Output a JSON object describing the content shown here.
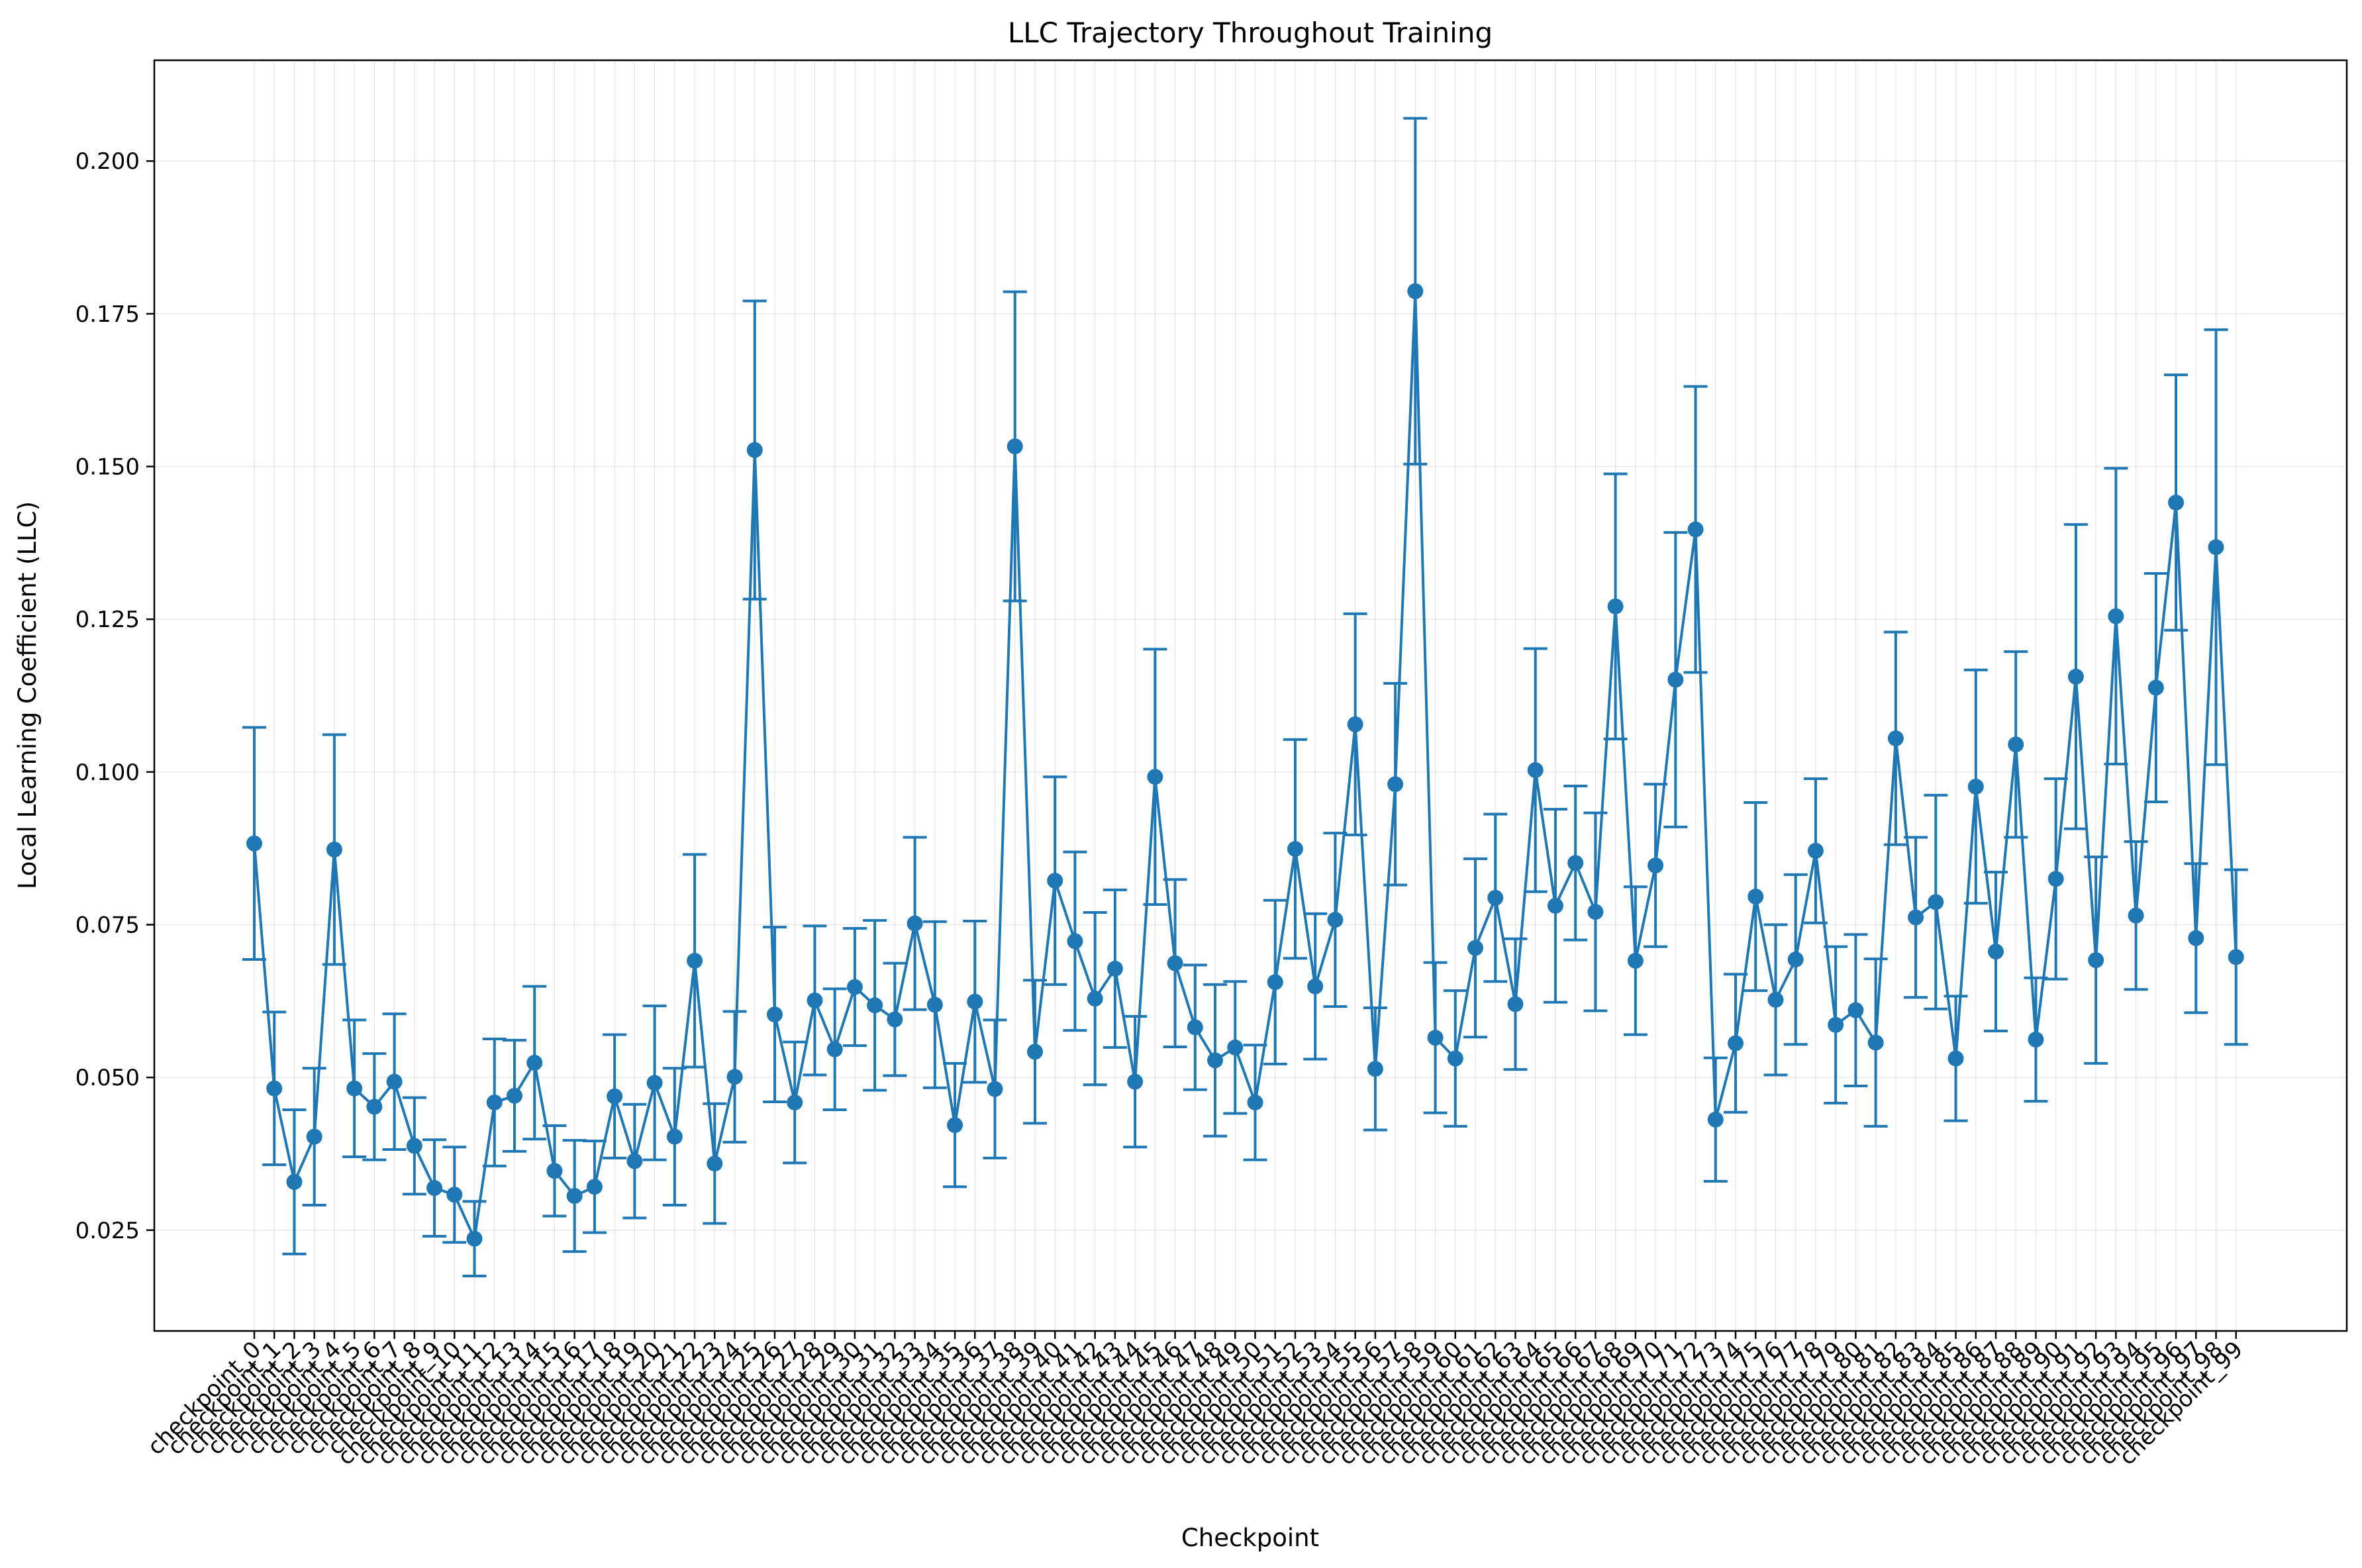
{
  "chart_data": {
    "type": "line",
    "title": "LLC Trajectory Throughout Training",
    "xlabel": "Checkpoint",
    "ylabel": "Local Learning Coefficient (LLC)",
    "ylim": [
      0.0085,
      0.2165
    ],
    "yticks": [
      "0.025",
      "0.050",
      "0.075",
      "0.100",
      "0.125",
      "0.150",
      "0.175",
      "0.200"
    ],
    "grid": true,
    "color": "#1f77b4",
    "categories": [
      "checkpoint_0",
      "checkpoint_1",
      "checkpoint_2",
      "checkpoint_3",
      "checkpoint_4",
      "checkpoint_5",
      "checkpoint_6",
      "checkpoint_7",
      "checkpoint_8",
      "checkpoint_9",
      "checkpoint_10",
      "checkpoint_11",
      "checkpoint_12",
      "checkpoint_13",
      "checkpoint_14",
      "checkpoint_15",
      "checkpoint_16",
      "checkpoint_17",
      "checkpoint_18",
      "checkpoint_19",
      "checkpoint_20",
      "checkpoint_21",
      "checkpoint_22",
      "checkpoint_23",
      "checkpoint_24",
      "checkpoint_25",
      "checkpoint_26",
      "checkpoint_27",
      "checkpoint_28",
      "checkpoint_29",
      "checkpoint_30",
      "checkpoint_31",
      "checkpoint_32",
      "checkpoint_33",
      "checkpoint_34",
      "checkpoint_35",
      "checkpoint_36",
      "checkpoint_37",
      "checkpoint_38",
      "checkpoint_39",
      "checkpoint_40",
      "checkpoint_41",
      "checkpoint_42",
      "checkpoint_43",
      "checkpoint_44",
      "checkpoint_45",
      "checkpoint_46",
      "checkpoint_47",
      "checkpoint_48",
      "checkpoint_49",
      "checkpoint_50",
      "checkpoint_51",
      "checkpoint_52",
      "checkpoint_53",
      "checkpoint_54",
      "checkpoint_55",
      "checkpoint_56",
      "checkpoint_57",
      "checkpoint_58",
      "checkpoint_59",
      "checkpoint_60",
      "checkpoint_61",
      "checkpoint_62",
      "checkpoint_63",
      "checkpoint_64",
      "checkpoint_65",
      "checkpoint_66",
      "checkpoint_67",
      "checkpoint_68",
      "checkpoint_69",
      "checkpoint_70",
      "checkpoint_71",
      "checkpoint_72",
      "checkpoint_73",
      "checkpoint_74",
      "checkpoint_75",
      "checkpoint_76",
      "checkpoint_77",
      "checkpoint_78",
      "checkpoint_79",
      "checkpoint_80",
      "checkpoint_81",
      "checkpoint_82",
      "checkpoint_83",
      "checkpoint_84",
      "checkpoint_85",
      "checkpoint_86",
      "checkpoint_87",
      "checkpoint_88",
      "checkpoint_89",
      "checkpoint_90",
      "checkpoint_91",
      "checkpoint_92",
      "checkpoint_93",
      "checkpoint_94",
      "checkpoint_95",
      "checkpoint_96",
      "checkpoint_97",
      "checkpoint_98",
      "checkpoint_99"
    ],
    "values": [
      0.0883,
      0.0482,
      0.0329,
      0.0403,
      0.0873,
      0.0482,
      0.0452,
      0.0493,
      0.0388,
      0.0319,
      0.0308,
      0.0236,
      0.0459,
      0.047,
      0.0524,
      0.0347,
      0.0306,
      0.0321,
      0.0469,
      0.0363,
      0.0491,
      0.0403,
      0.0691,
      0.0359,
      0.0501,
      0.1527,
      0.0603,
      0.0459,
      0.0626,
      0.0546,
      0.0648,
      0.0618,
      0.0595,
      0.0752,
      0.0619,
      0.0422,
      0.0624,
      0.0481,
      0.1533,
      0.0542,
      0.0822,
      0.0723,
      0.0629,
      0.0678,
      0.0493,
      0.0992,
      0.0687,
      0.0582,
      0.0528,
      0.0549,
      0.0459,
      0.0656,
      0.0874,
      0.0649,
      0.0758,
      0.1078,
      0.0514,
      0.098,
      0.1787,
      0.0565,
      0.0531,
      0.0712,
      0.0794,
      0.062,
      0.1003,
      0.0781,
      0.0851,
      0.0771,
      0.1271,
      0.0691,
      0.0847,
      0.1151,
      0.1397,
      0.0431,
      0.0556,
      0.0796,
      0.0627,
      0.0693,
      0.0871,
      0.0586,
      0.061,
      0.0557,
      0.1055,
      0.0762,
      0.0787,
      0.0531,
      0.0976,
      0.0706,
      0.1045,
      0.0562,
      0.0825,
      0.1156,
      0.0692,
      0.1255,
      0.0765,
      0.1138,
      0.1441,
      0.0728,
      0.1368,
      0.0697
    ],
    "errors": [
      0.019,
      0.0125,
      0.0118,
      0.0112,
      0.0188,
      0.0112,
      0.0087,
      0.0111,
      0.0079,
      0.0079,
      0.0078,
      0.0061,
      0.0104,
      0.0091,
      0.0125,
      0.0074,
      0.0091,
      0.0075,
      0.0101,
      0.0093,
      0.0126,
      0.0112,
      0.0174,
      0.0098,
      0.0107,
      0.0244,
      0.0143,
      0.0099,
      0.0122,
      0.0099,
      0.0096,
      0.0139,
      0.0092,
      0.0141,
      0.0136,
      0.0101,
      0.0132,
      0.0113,
      0.0253,
      0.0117,
      0.017,
      0.0146,
      0.0141,
      0.0129,
      0.0107,
      0.0209,
      0.0137,
      0.0102,
      0.0124,
      0.0108,
      0.0094,
      0.0134,
      0.0179,
      0.0119,
      0.0142,
      0.0181,
      0.01,
      0.0165,
      0.0283,
      0.0123,
      0.0111,
      0.0146,
      0.0137,
      0.0107,
      0.0199,
      0.0158,
      0.0126,
      0.0162,
      0.0217,
      0.0121,
      0.0133,
      0.0241,
      0.0234,
      0.0101,
      0.0113,
      0.0154,
      0.0123,
      0.0139,
      0.0118,
      0.0128,
      0.0124,
      0.0137,
      0.0174,
      0.0131,
      0.0175,
      0.0102,
      0.0191,
      0.013,
      0.0152,
      0.0101,
      0.0164,
      0.0249,
      0.0169,
      0.0242,
      0.0121,
      0.0187,
      0.0209,
      0.0122,
      0.0356,
      0.0143
    ]
  }
}
